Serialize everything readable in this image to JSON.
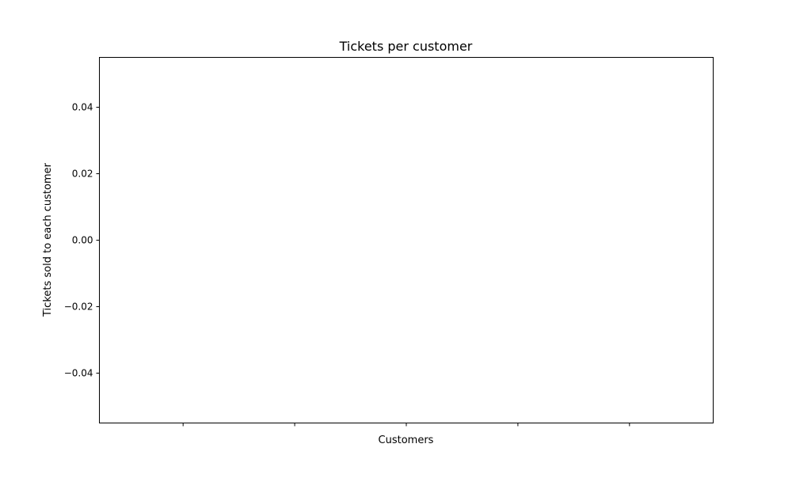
{
  "chart_data": {
    "type": "bar",
    "title": "Tickets per customer",
    "xlabel": "Customers",
    "ylabel": "Tickets sold to each customer",
    "categories": [
      "",
      "",
      "",
      "",
      ""
    ],
    "values": [
      0,
      0,
      0,
      0,
      0
    ],
    "ylim": [
      -0.055,
      0.055
    ],
    "yticks": [
      -0.04,
      -0.02,
      0.0,
      0.02,
      0.04
    ],
    "ytick_labels": [
      "−0.04",
      "−0.02",
      "0.00",
      "0.02",
      "0.04"
    ],
    "grid": false,
    "legend": "none"
  },
  "colors": {
    "axis": "#000000",
    "bar": "#1f77b4",
    "background": "#ffffff"
  }
}
